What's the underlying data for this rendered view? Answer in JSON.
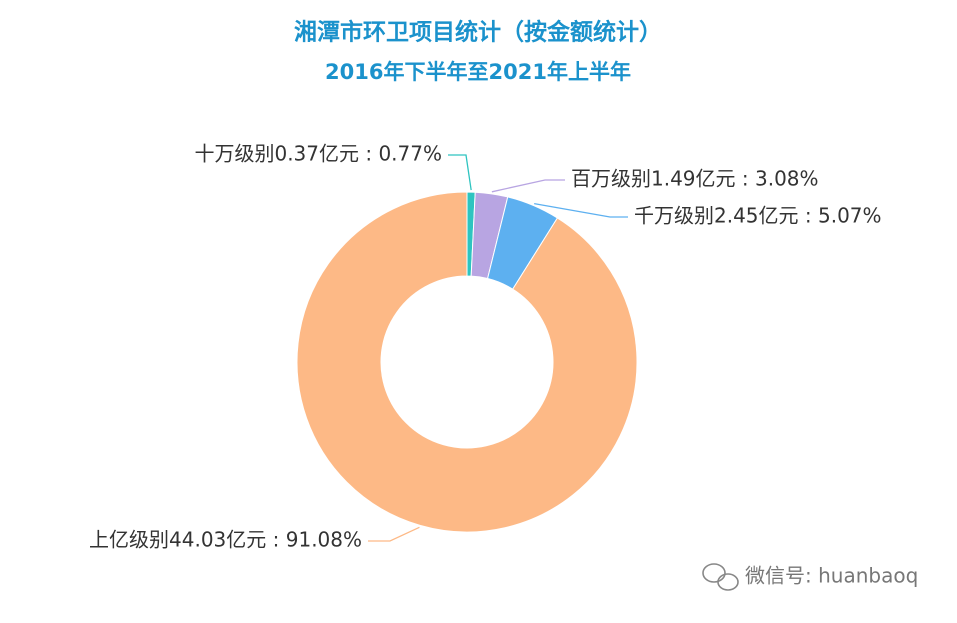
{
  "chart_data": {
    "type": "donut",
    "title": "湘潭市环卫项目统计（按金额统计）",
    "subtitle": "2016年下半年至2021年上半年",
    "values": [
      0.77,
      3.08,
      5.07,
      91.08
    ],
    "value_labels": [
      "十万级别0.37亿元 : 0.77%",
      "百万级别1.49亿元 : 3.08%",
      "千万级别2.45亿元 : 5.07%",
      "上亿级别44.03亿元 : 91.08%"
    ],
    "colors": [
      "#2ec4c0",
      "#b8a5e2",
      "#5db0f0",
      "#fdb986"
    ]
  },
  "watermark": "微信号: huanbaoq"
}
